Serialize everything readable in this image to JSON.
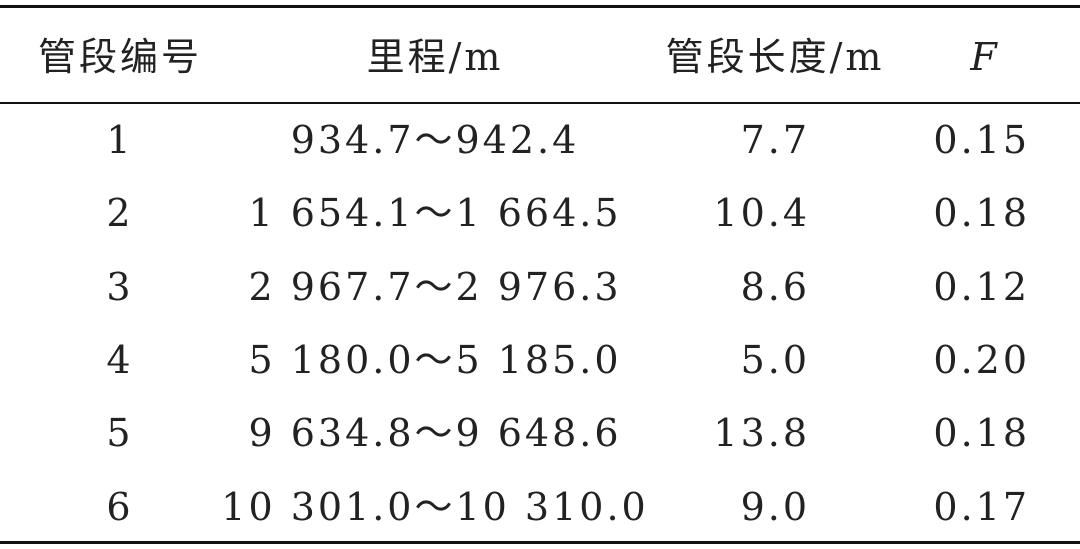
{
  "table": {
    "header": [
      "管段编号",
      "里程/m",
      "管段长度/m",
      "F"
    ],
    "rows": [
      [
        "1",
        "934.7～942.4",
        "7.7",
        "0.15"
      ],
      [
        "2",
        "1 654.1～1 664.5",
        "10.4",
        "0.18"
      ],
      [
        "3",
        "2 967.7～2 976.3",
        "8.6",
        "0.12"
      ],
      [
        "4",
        "5 180.0～5 185.0",
        "5.0",
        "0.20"
      ],
      [
        "5",
        "9 634.8～9 648.6",
        "13.8",
        "0.18"
      ],
      [
        "6",
        "10 301.0～10 310.0",
        "9.0",
        "0.17"
      ]
    ]
  }
}
